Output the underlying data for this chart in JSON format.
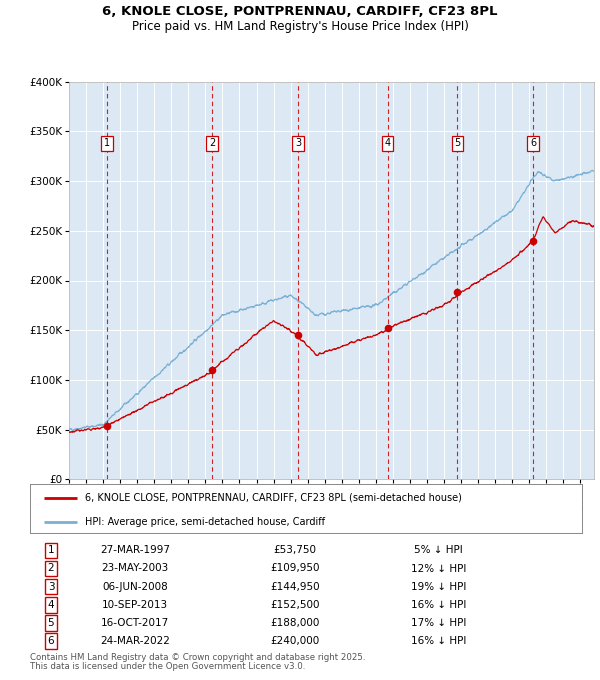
{
  "title_line1": "6, KNOLE CLOSE, PONTPRENNAU, CARDIFF, CF23 8PL",
  "title_line2": "Price paid vs. HM Land Registry's House Price Index (HPI)",
  "ylim": [
    0,
    400000
  ],
  "yticks": [
    0,
    50000,
    100000,
    150000,
    200000,
    250000,
    300000,
    350000,
    400000
  ],
  "xlim_start": 1995.0,
  "xlim_end": 2025.8,
  "bg_color": "#dce9f5",
  "grid_color": "#ffffff",
  "red_line_color": "#cc0000",
  "blue_line_color": "#7ab0d4",
  "dashed_line_color": "#cc0000",
  "transactions": [
    {
      "num": 1,
      "date_x": 1997.23,
      "price": 53750,
      "label": "27-MAR-1997",
      "price_label": "£53,750",
      "pct": "5%"
    },
    {
      "num": 2,
      "date_x": 2003.39,
      "price": 109950,
      "label": "23-MAY-2003",
      "price_label": "£109,950",
      "pct": "12%"
    },
    {
      "num": 3,
      "date_x": 2008.43,
      "price": 144950,
      "label": "06-JUN-2008",
      "price_label": "£144,950",
      "pct": "19%"
    },
    {
      "num": 4,
      "date_x": 2013.69,
      "price": 152500,
      "label": "10-SEP-2013",
      "price_label": "£152,500",
      "pct": "16%"
    },
    {
      "num": 5,
      "date_x": 2017.79,
      "price": 188000,
      "label": "16-OCT-2017",
      "price_label": "£188,000",
      "pct": "17%"
    },
    {
      "num": 6,
      "date_x": 2022.23,
      "price": 240000,
      "label": "24-MAR-2022",
      "price_label": "£240,000",
      "pct": "16%"
    }
  ],
  "legend_red_label": "6, KNOLE CLOSE, PONTPRENNAU, CARDIFF, CF23 8PL (semi-detached house)",
  "legend_blue_label": "HPI: Average price, semi-detached house, Cardiff",
  "footer_line1": "Contains HM Land Registry data © Crown copyright and database right 2025.",
  "footer_line2": "This data is licensed under the Open Government Licence v3.0."
}
